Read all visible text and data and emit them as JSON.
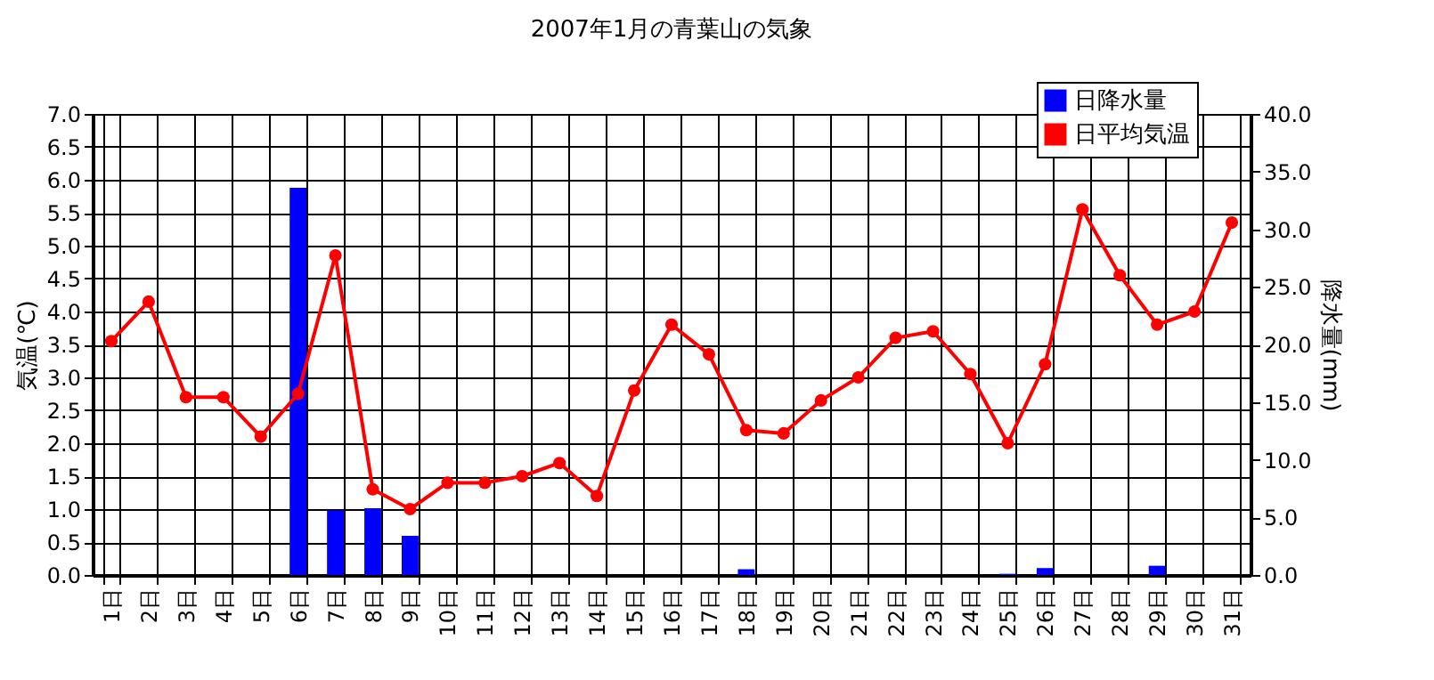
{
  "chart_data": {
    "type": "bar",
    "title": "2007年1月の青葉山の気象",
    "categories": [
      "1日",
      "2日",
      "3日",
      "4日",
      "5日",
      "6日",
      "7日",
      "8日",
      "9日",
      "10日",
      "11日",
      "12日",
      "13日",
      "14日",
      "15日",
      "16日",
      "17日",
      "18日",
      "19日",
      "20日",
      "21日",
      "22日",
      "23日",
      "24日",
      "25日",
      "26日",
      "27日",
      "28日",
      "29日",
      "30日",
      "31日"
    ],
    "series": [
      {
        "name": "日降水量",
        "axis": "y2",
        "color": "#0000ff",
        "values": [
          0,
          0,
          0,
          0,
          0,
          33.6,
          5.6,
          5.8,
          3.4,
          0,
          0,
          0,
          0,
          0,
          0,
          0,
          0,
          0.5,
          0,
          0,
          0,
          0,
          0,
          0,
          0.1,
          0.6,
          0,
          0,
          0.8,
          0,
          0
        ]
      },
      {
        "name": "日平均気温",
        "type": "line",
        "axis": "y",
        "color": "#ff0000",
        "marker": "circle",
        "values": [
          3.55,
          4.15,
          2.7,
          2.7,
          2.1,
          2.75,
          4.85,
          1.3,
          1.0,
          1.4,
          1.4,
          1.5,
          1.7,
          1.2,
          2.8,
          3.8,
          3.35,
          2.2,
          2.15,
          2.65,
          3.0,
          3.6,
          3.7,
          3.05,
          2.0,
          3.2,
          5.55,
          4.55,
          3.8,
          4.0,
          5.35
        ]
      }
    ],
    "ylabel": "気温(℃)",
    "y2label": "降水量(mm)",
    "ylim": [
      0,
      7
    ],
    "yticks": [
      {
        "value": 0,
        "label": "0.0"
      },
      {
        "value": 0.5,
        "label": "0.5"
      },
      {
        "value": 1,
        "label": "1.0"
      },
      {
        "value": 1.5,
        "label": "1.5"
      },
      {
        "value": 2,
        "label": "2.0"
      },
      {
        "value": 2.5,
        "label": "2.5"
      },
      {
        "value": 3,
        "label": "3.0"
      },
      {
        "value": 3.5,
        "label": "3.5"
      },
      {
        "value": 4,
        "label": "4.0"
      },
      {
        "value": 4.5,
        "label": "4.5"
      },
      {
        "value": 5,
        "label": "5.0"
      },
      {
        "value": 5.5,
        "label": "5.5"
      },
      {
        "value": 6,
        "label": "6.0"
      },
      {
        "value": 6.5,
        "label": "6.5"
      },
      {
        "value": 7,
        "label": "7.0"
      }
    ],
    "y2lim": [
      0,
      40
    ],
    "y2ticks": [
      {
        "value": 0,
        "label": "0.0"
      },
      {
        "value": 5,
        "label": "5.0"
      },
      {
        "value": 10,
        "label": "10.0"
      },
      {
        "value": 15,
        "label": "15.0"
      },
      {
        "value": 20,
        "label": "20.0"
      },
      {
        "value": 25,
        "label": "25.0"
      },
      {
        "value": 30,
        "label": "30.0"
      },
      {
        "value": 35,
        "label": "35.0"
      },
      {
        "value": 40,
        "label": "40.0"
      }
    ],
    "grid": true,
    "legend": "top right"
  }
}
